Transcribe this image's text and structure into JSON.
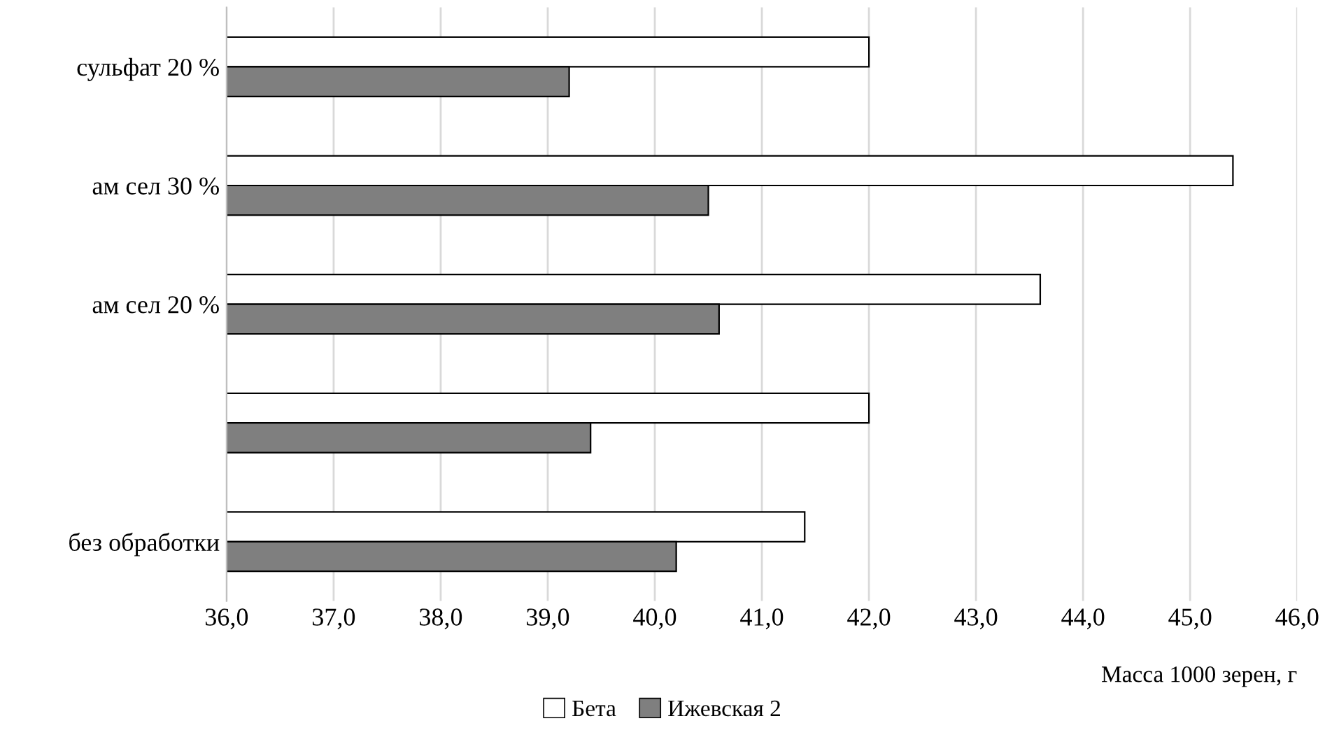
{
  "chart_data": {
    "type": "bar",
    "orientation": "horizontal",
    "xlabel": "Масса 1000 зерен, г",
    "categories": [
      "сульфат 20 %",
      "ам сел 30 %",
      "ам сел 20 %",
      null,
      "без обработки"
    ],
    "series": [
      {
        "name": "Бета",
        "color": "#ffffff",
        "values": [
          42.0,
          45.4,
          43.6,
          42.0,
          41.4
        ]
      },
      {
        "name": "Ижевская 2",
        "color": "#7f7f7f",
        "values": [
          39.2,
          40.5,
          40.6,
          39.4,
          40.2
        ]
      }
    ],
    "xlim": [
      36,
      46
    ],
    "xticks": [
      {
        "value": 36,
        "label": "36,0"
      },
      {
        "value": 37,
        "label": "37,0"
      },
      {
        "value": 38,
        "label": "38,0"
      },
      {
        "value": 39,
        "label": "39,0"
      },
      {
        "value": 40,
        "label": "40,0"
      },
      {
        "value": 41,
        "label": "41,0"
      },
      {
        "value": 42,
        "label": "42,0"
      },
      {
        "value": 43,
        "label": "43,0"
      },
      {
        "value": 44,
        "label": "44,0"
      },
      {
        "value": 45,
        "label": "45,0"
      },
      {
        "value": 46,
        "label": "46,0"
      }
    ],
    "grid": "x",
    "legend": "bottom"
  }
}
